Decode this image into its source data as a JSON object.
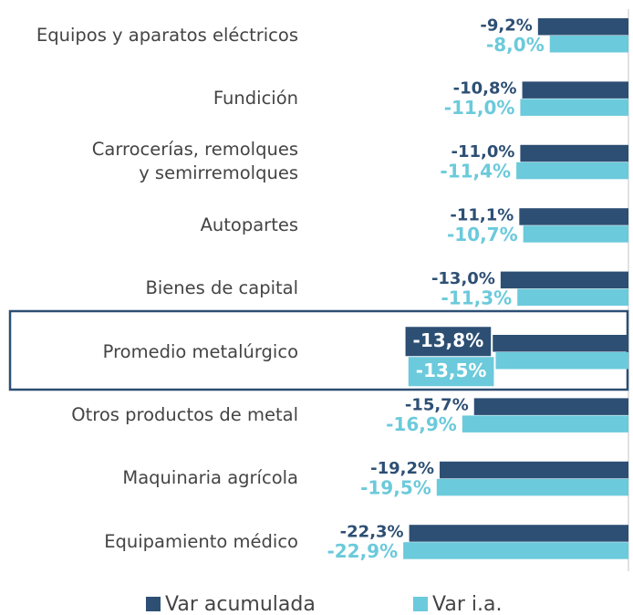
{
  "chart_data": {
    "type": "hbar",
    "categories": [
      "Equipos y aparatos eléctricos",
      "Fundición",
      "Carrocerías, remolques\ny semirremolques",
      "Autopartes",
      "Bienes de capital",
      "Promedio metalúrgico",
      "Otros productos de metal",
      "Maquinaria agrícola",
      "Equipamiento médico"
    ],
    "series": [
      {
        "name": "Var acumulada",
        "color": "#2d4f74",
        "values": [
          -9.2,
          -10.8,
          -11.0,
          -11.1,
          -13.0,
          -13.8,
          -15.7,
          -19.2,
          -22.3
        ],
        "value_labels": [
          "-9,2%",
          "-10,8%",
          "-11,0%",
          "-11,1%",
          "-13,0%",
          "-13,8%",
          "-15,7%",
          "-19,2%",
          "-22,3%"
        ]
      },
      {
        "name": "Var i.a.",
        "color": "#6bcadb",
        "values": [
          -8.0,
          -11.0,
          -11.4,
          -10.7,
          -11.3,
          -13.5,
          -16.9,
          -19.5,
          -22.9
        ],
        "value_labels": [
          "-8,0%",
          "-11,0%",
          "-11,4%",
          "-10,7%",
          "-11,3%",
          "-13,5%",
          "-16,9%",
          "-19,5%",
          "-22,9%"
        ]
      }
    ],
    "xlim": [
      -25,
      0
    ],
    "highlight_index": 5,
    "legend": "bottom"
  }
}
